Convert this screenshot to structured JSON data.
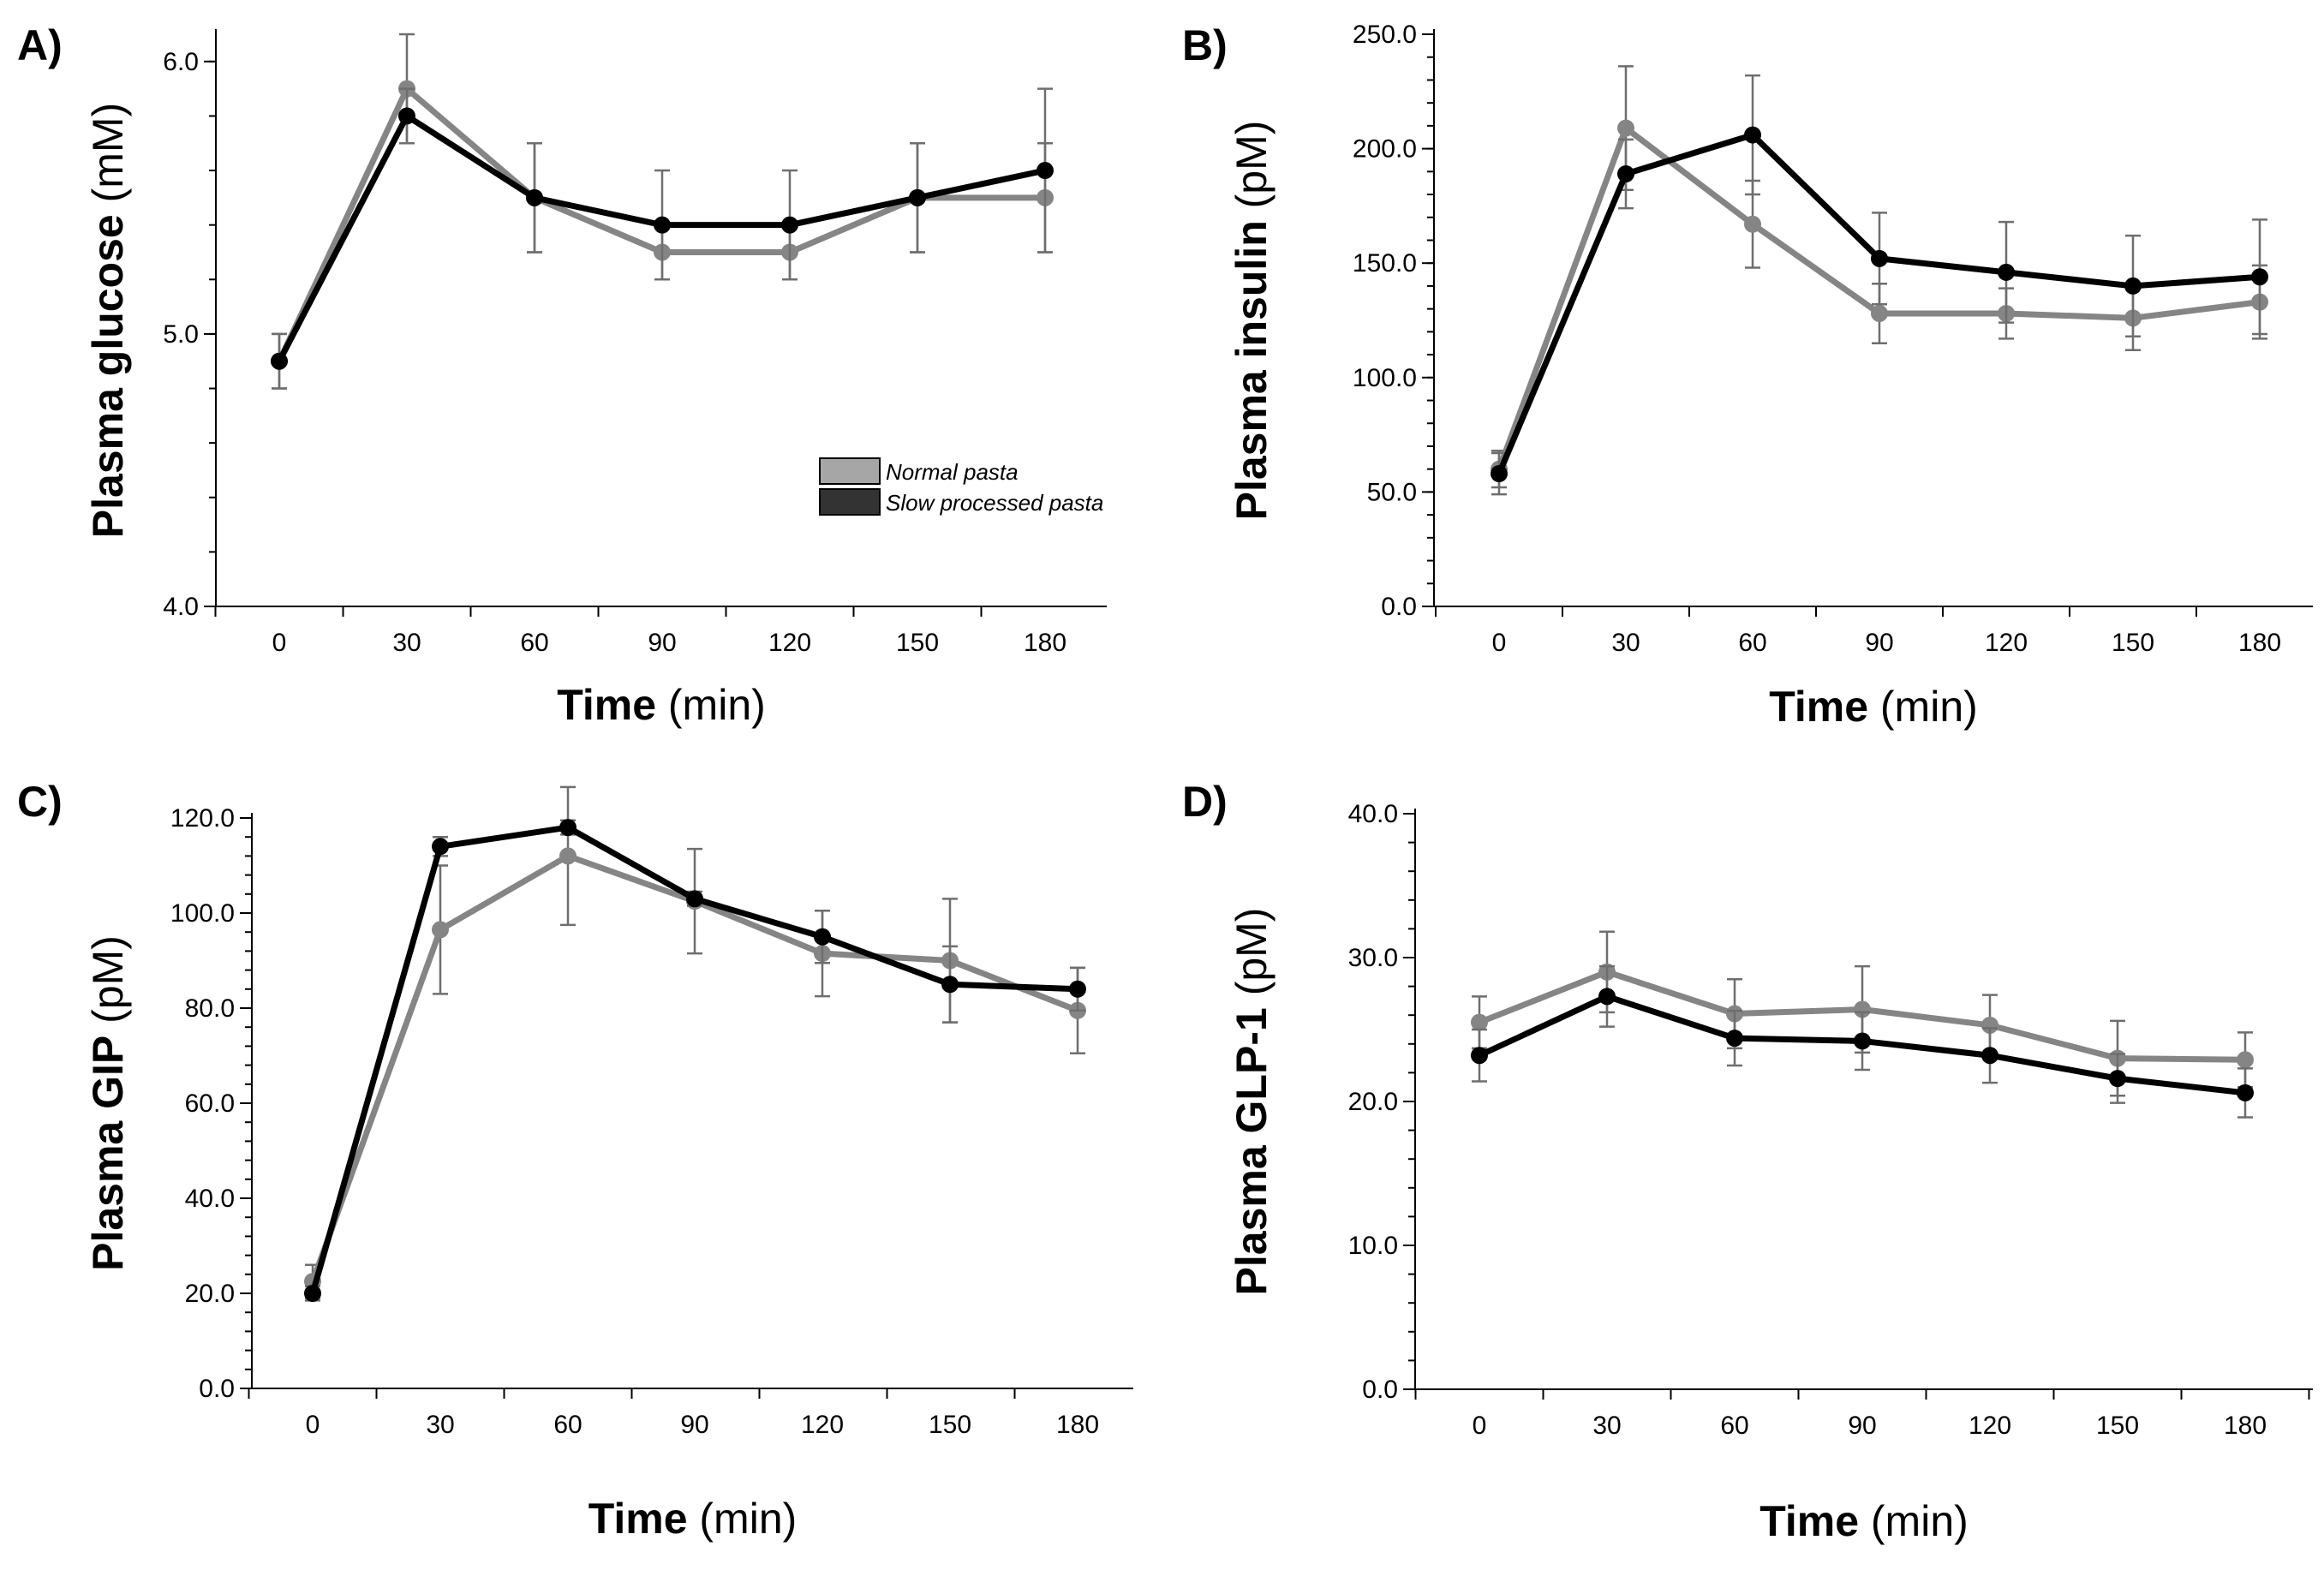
{
  "colors": {
    "normal": "#858585",
    "slow": "#000000",
    "axis": "#000000",
    "legend_normal_fill": "#a6a6a6",
    "legend_slow_fill": "#333333"
  },
  "legend": {
    "normal_label": "Normal pasta",
    "slow_label": "Slow processed pasta"
  },
  "chart_data": [
    {
      "type": "line",
      "panel_label": "A)",
      "ylabel_bold": "Plasma glucose",
      "ylabel_unit": "(mM)",
      "xlabel_bold": "Time",
      "xlabel_unit": "(min)",
      "ylim": [
        4.0,
        6.1
      ],
      "yticks": [
        4.0,
        5.0,
        6.0
      ],
      "ytick_labels": [
        "4.0",
        "5.0",
        "6.0"
      ],
      "yminor": 0.2,
      "x": [
        0,
        30,
        60,
        90,
        120,
        150,
        180
      ],
      "xtick_labels": [
        "0",
        "30",
        "60",
        "90",
        "120",
        "150",
        "180"
      ],
      "series": [
        {
          "name": "Normal pasta",
          "values": [
            4.9,
            5.9,
            5.5,
            5.3,
            5.3,
            5.5,
            5.5
          ],
          "errors": [
            0.1,
            0.2,
            0.2,
            0.1,
            0.1,
            0.2,
            0.2
          ]
        },
        {
          "name": "Slow processed pasta",
          "values": [
            4.9,
            5.8,
            5.5,
            5.4,
            5.4,
            5.5,
            5.6
          ],
          "errors": [
            0.1,
            0.1,
            0.2,
            0.2,
            0.2,
            0.2,
            0.3
          ]
        }
      ],
      "show_legend": true
    },
    {
      "type": "line",
      "panel_label": "B)",
      "ylabel_bold": "Plasma insulin",
      "ylabel_unit": "(pM)",
      "xlabel_bold": "Time",
      "xlabel_unit": "(min)",
      "ylim": [
        0,
        250
      ],
      "yticks": [
        0,
        50,
        100,
        150,
        200,
        250
      ],
      "ytick_labels": [
        "0.0",
        "50.0",
        "100.0",
        "150.0",
        "200.0",
        "250.0"
      ],
      "yminor": 10,
      "x": [
        0,
        30,
        60,
        90,
        120,
        150,
        180
      ],
      "xtick_labels": [
        "0",
        "30",
        "60",
        "90",
        "120",
        "150",
        "180"
      ],
      "series": [
        {
          "name": "Normal pasta",
          "values": [
            60,
            209,
            167,
            128,
            128,
            126,
            133
          ],
          "errors": [
            8,
            27,
            19,
            13,
            11,
            14,
            16
          ]
        },
        {
          "name": "Slow processed pasta",
          "values": [
            58,
            189,
            206,
            152,
            146,
            140,
            144
          ],
          "errors": [
            9,
            15,
            26,
            20,
            22,
            22,
            25
          ]
        }
      ],
      "show_legend": false
    },
    {
      "type": "line",
      "panel_label": "C)",
      "ylabel_bold": "Plasma GIP",
      "ylabel_unit": "(pM)",
      "xlabel_bold": "Time",
      "xlabel_unit": "(min)",
      "ylim": [
        0,
        120
      ],
      "yticks": [
        0,
        20,
        40,
        60,
        80,
        100,
        120
      ],
      "ytick_labels": [
        "0.0",
        "20.0",
        "40.0",
        "60.0",
        "80.0",
        "100.0",
        "120.0"
      ],
      "yminor": 4,
      "x": [
        0,
        30,
        60,
        90,
        120,
        150,
        180
      ],
      "xtick_labels": [
        "0",
        "30",
        "60",
        "90",
        "120",
        "150",
        "180"
      ],
      "series": [
        {
          "name": "Normal pasta",
          "values": [
            22.5,
            96.5,
            112,
            102.5,
            91.5,
            90,
            79.5
          ],
          "errors": [
            3.5,
            13.5,
            14.5,
            11,
            9,
            13,
            9
          ]
        },
        {
          "name": "Slow processed pasta",
          "values": [
            20,
            114,
            118,
            103,
            95,
            85,
            84
          ],
          "errors": [
            1.5,
            2,
            1.5,
            1.5,
            5.5,
            8,
            4.5
          ]
        }
      ],
      "show_legend": false
    },
    {
      "type": "line",
      "panel_label": "D)",
      "ylabel_bold": "Plasma GLP-1",
      "ylabel_unit": "(pM)",
      "xlabel_bold": "Time",
      "xlabel_unit": "(min)",
      "ylim": [
        0,
        40
      ],
      "yticks": [
        0,
        10,
        20,
        30,
        40
      ],
      "ytick_labels": [
        "0.0",
        "10.0",
        "20.0",
        "30.0",
        "40.0"
      ],
      "yminor": 2,
      "x": [
        0,
        30,
        60,
        90,
        120,
        150,
        180
      ],
      "xtick_labels": [
        "0",
        "30",
        "60",
        "90",
        "120",
        "150",
        "180"
      ],
      "series": [
        {
          "name": "Normal pasta",
          "values": [
            25.5,
            29,
            26.1,
            26.4,
            25.3,
            23,
            22.9
          ],
          "errors": [
            1.8,
            2.8,
            2.4,
            3,
            2.1,
            2.6,
            1.9
          ]
        },
        {
          "name": "Slow processed pasta",
          "values": [
            23.2,
            27.3,
            24.4,
            24.2,
            23.2,
            21.6,
            20.6
          ],
          "errors": [
            1.8,
            2.1,
            1.9,
            2,
            1.9,
            1.7,
            1.7
          ]
        }
      ],
      "show_legend": false
    }
  ]
}
